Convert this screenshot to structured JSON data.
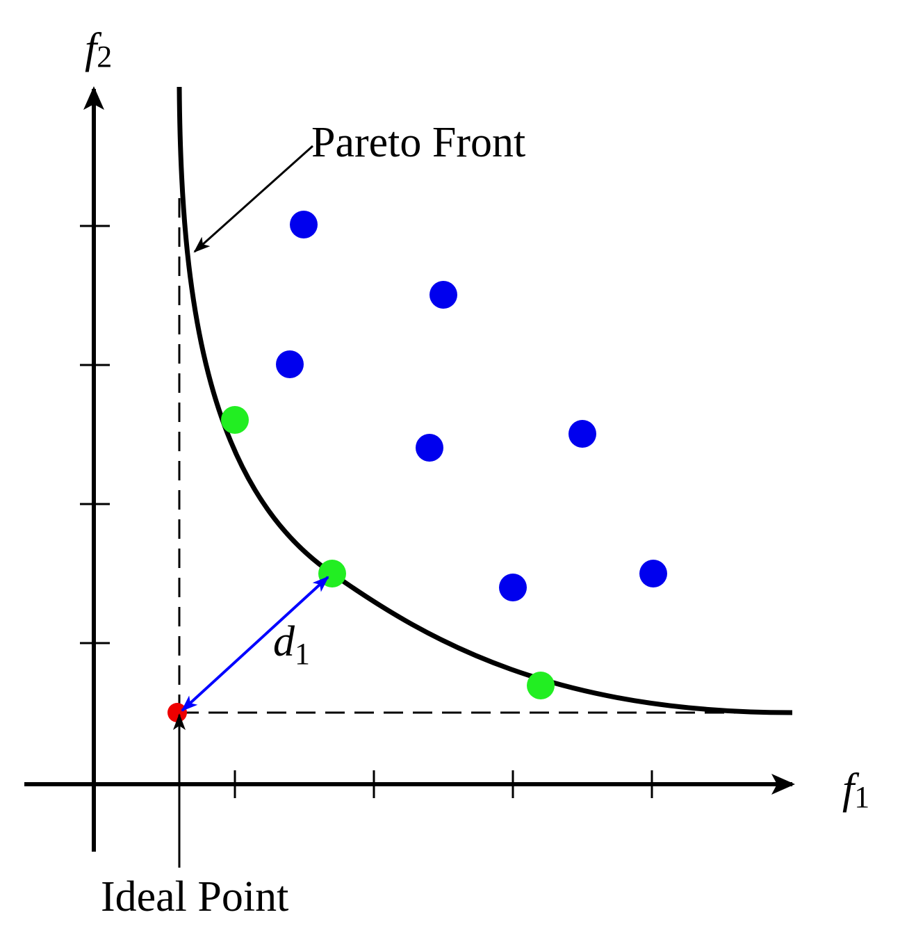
{
  "axes": {
    "x": {
      "label": "f",
      "subscript": "1"
    },
    "y": {
      "label": "f",
      "subscript": "2"
    }
  },
  "annotations": {
    "pareto_front": "Pareto Front",
    "ideal_point": "Ideal Point",
    "distance": {
      "label": "d",
      "subscript": "1"
    }
  }
}
